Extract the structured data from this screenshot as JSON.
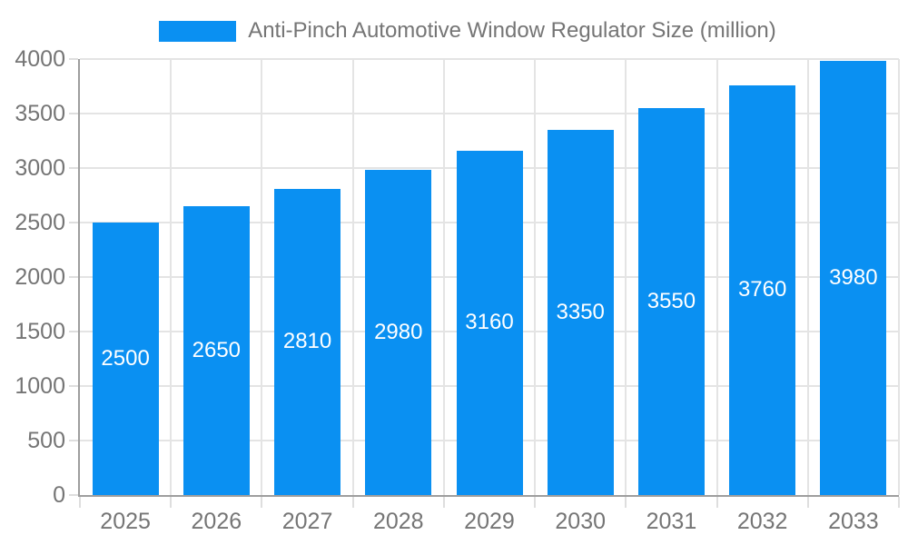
{
  "legend": {
    "label": "Anti-Pinch Automotive Window Regulator Size (million)"
  },
  "colors": {
    "bar": "#0a90f2",
    "axis_line": "#9e9e9e",
    "gridline": "#e4e4e4",
    "axis_text": "#757575",
    "value_label": "#ffffff",
    "background": "#ffffff"
  },
  "chart_data": {
    "type": "bar",
    "title": "Anti-Pinch Automotive Window Regulator Size (million)",
    "categories": [
      "2025",
      "2026",
      "2027",
      "2028",
      "2029",
      "2030",
      "2031",
      "2032",
      "2033"
    ],
    "values": [
      2500,
      2650,
      2810,
      2980,
      3160,
      3350,
      3550,
      3760,
      3980
    ],
    "xlabel": "",
    "ylabel": "",
    "ylim": [
      0,
      4000
    ],
    "yticks": [
      0,
      500,
      1000,
      1500,
      2000,
      2500,
      3000,
      3500,
      4000
    ],
    "grid": true,
    "legend_position": "top",
    "value_labels": "inside-center"
  }
}
